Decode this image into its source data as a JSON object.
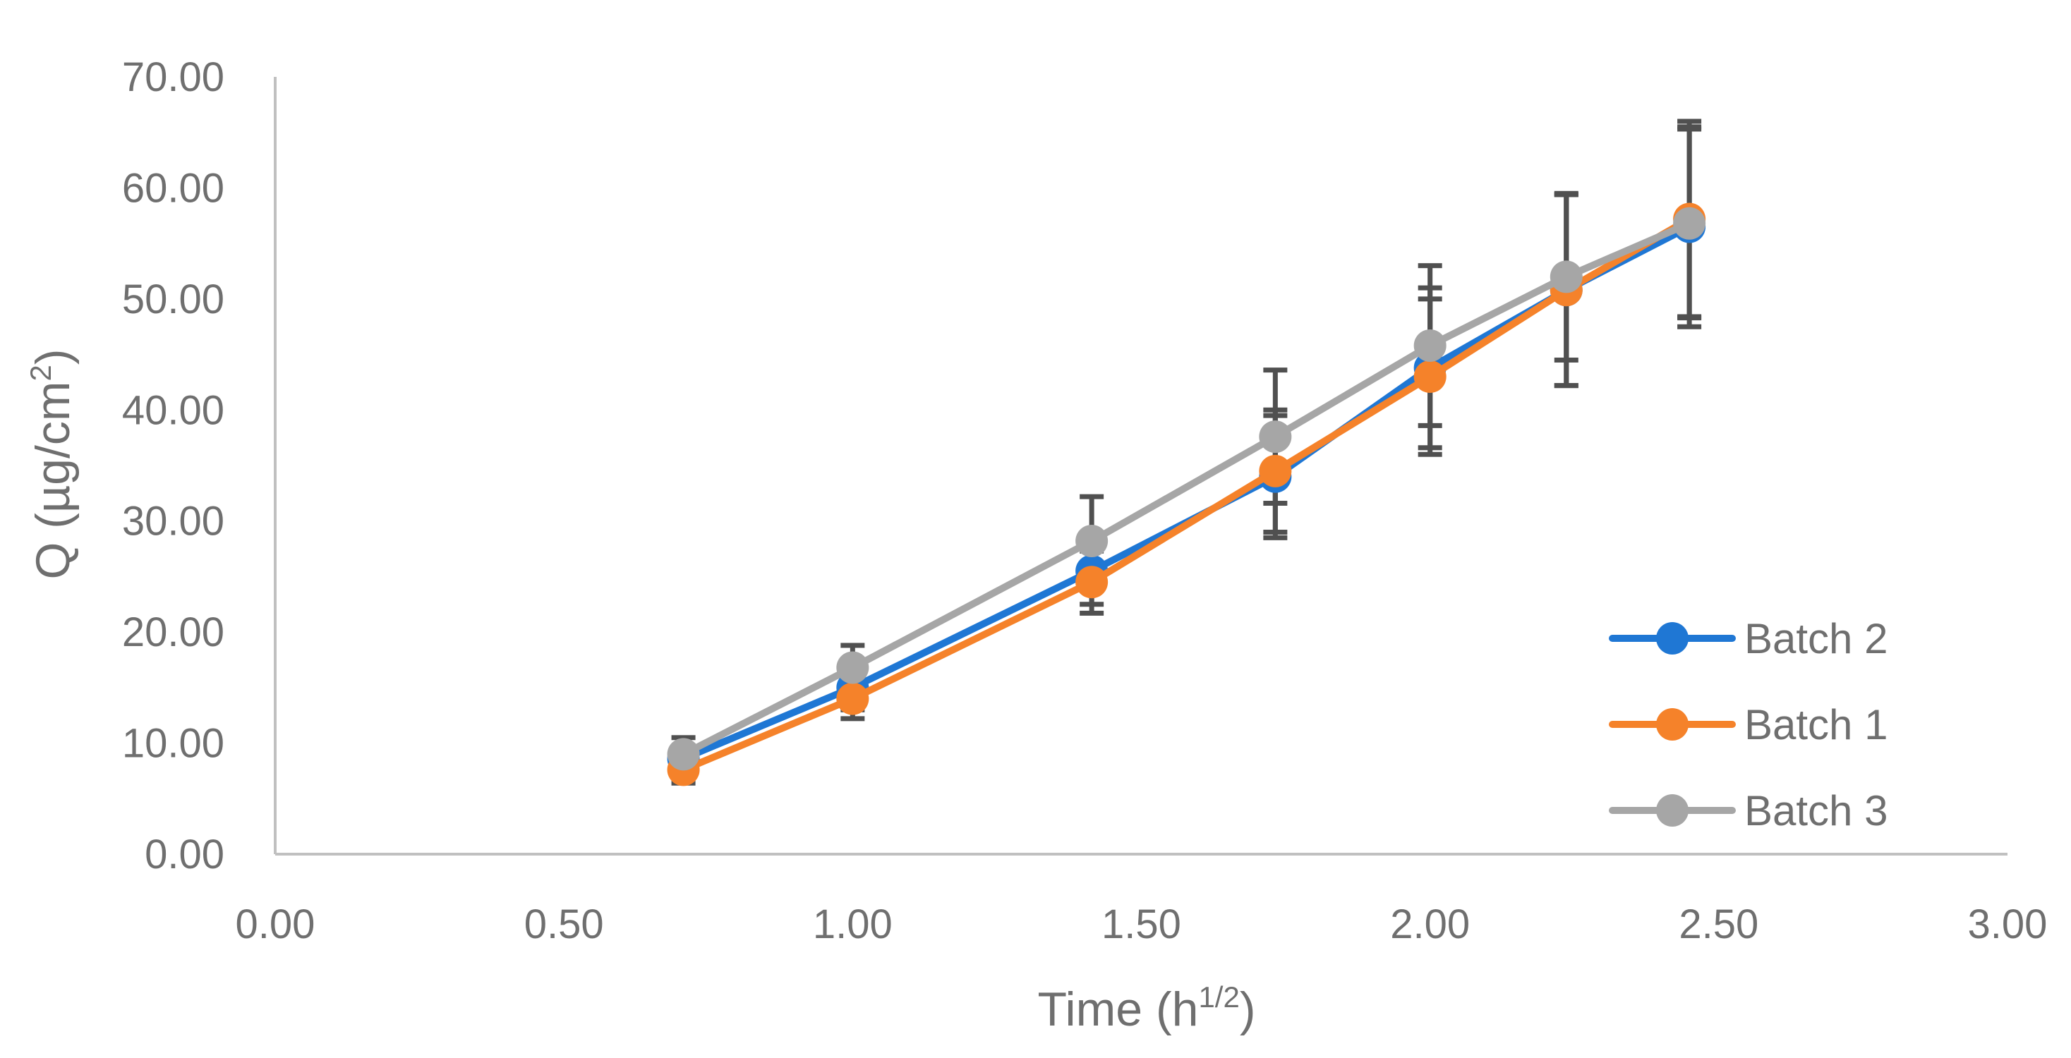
{
  "chart_data": {
    "type": "line",
    "title": "",
    "xlabel": "Time",
    "xlabel_unit_base": "h",
    "xlabel_unit_exp": "1/2",
    "ylabel": "Q (µg/cm",
    "ylabel_exp": "2",
    "ylabel_close": ")",
    "xlim": [
      0,
      3
    ],
    "ylim": [
      0,
      70
    ],
    "x_ticks": [
      0,
      0.5,
      1,
      1.5,
      2,
      2.5,
      3
    ],
    "y_ticks": [
      0,
      10,
      20,
      30,
      40,
      50,
      60,
      70
    ],
    "x_tick_labels": [
      "0.00",
      "0.50",
      "1.00",
      "1.50",
      "2.00",
      "2.50",
      "3.00"
    ],
    "y_tick_labels": [
      "0.00",
      "10.00",
      "20.00",
      "30.00",
      "40.00",
      "50.00",
      "60.00",
      "70.00"
    ],
    "legend_position": "bottom-right",
    "x": [
      0.707,
      1.0,
      1.414,
      1.732,
      2.0,
      2.236,
      2.449
    ],
    "series": [
      {
        "name": "Batch 2",
        "color": "#1f77d4",
        "values": [
          8.6,
          15.0,
          25.5,
          34.0,
          43.8,
          50.8,
          56.5
        ],
        "errors": [
          1.0,
          2.0,
          3.0,
          5.5,
          7.2,
          8.6,
          9.0
        ]
      },
      {
        "name": "Batch 1",
        "color": "#f5822a",
        "values": [
          7.6,
          14.0,
          24.5,
          34.5,
          43.0,
          50.8,
          57.2
        ],
        "errors": [
          1.2,
          1.8,
          2.8,
          5.5,
          7.0,
          8.6,
          8.8
        ]
      },
      {
        "name": "Batch 3",
        "color": "#a6a6a6",
        "values": [
          9.0,
          16.8,
          28.2,
          37.6,
          45.8,
          52.0,
          56.8
        ],
        "errors": [
          1.5,
          2.0,
          4.0,
          6.0,
          7.2,
          7.5,
          8.5
        ]
      }
    ],
    "error_bar_color": "#505050",
    "axis_color": "#c0c0c0"
  }
}
